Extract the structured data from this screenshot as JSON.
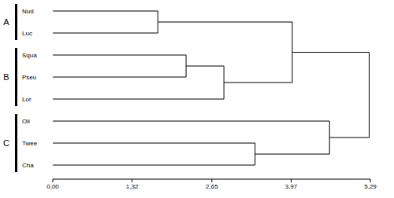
{
  "chart_data": {
    "type": "dendrogram",
    "leaves": [
      "Nud",
      "Luc",
      "Squa",
      "Pseu",
      "Lor",
      "Oli",
      "Twee",
      "Cha"
    ],
    "groups": [
      {
        "label": "A",
        "leaves": [
          "Nud",
          "Luc"
        ]
      },
      {
        "label": "B",
        "leaves": [
          "Squa",
          "Pseu",
          "Lor"
        ]
      },
      {
        "label": "C",
        "leaves": [
          "Oli",
          "Twee",
          "Cha"
        ]
      }
    ],
    "merges": [
      {
        "children": [
          "Nud",
          "Luc"
        ],
        "height": 1.75
      },
      {
        "children": [
          "Squa",
          "Pseu"
        ],
        "height": 2.22
      },
      {
        "children": [
          1,
          "Lor"
        ],
        "height": 2.85
      },
      {
        "children": [
          0,
          2
        ],
        "height": 3.99
      },
      {
        "children": [
          "Twee",
          "Cha"
        ],
        "height": 3.37
      },
      {
        "children": [
          "Oli",
          4
        ],
        "height": 4.61
      },
      {
        "children": [
          3,
          5
        ],
        "height": 5.27
      }
    ],
    "xlim": [
      0,
      5.29
    ],
    "xticks": [
      {
        "value": 0,
        "label": "0,00"
      },
      {
        "value": 1.32,
        "label": "1,32"
      },
      {
        "value": 2.65,
        "label": "2,65"
      },
      {
        "value": 3.97,
        "label": "3,97"
      },
      {
        "value": 5.29,
        "label": "5,29"
      }
    ],
    "color": "#000000"
  }
}
